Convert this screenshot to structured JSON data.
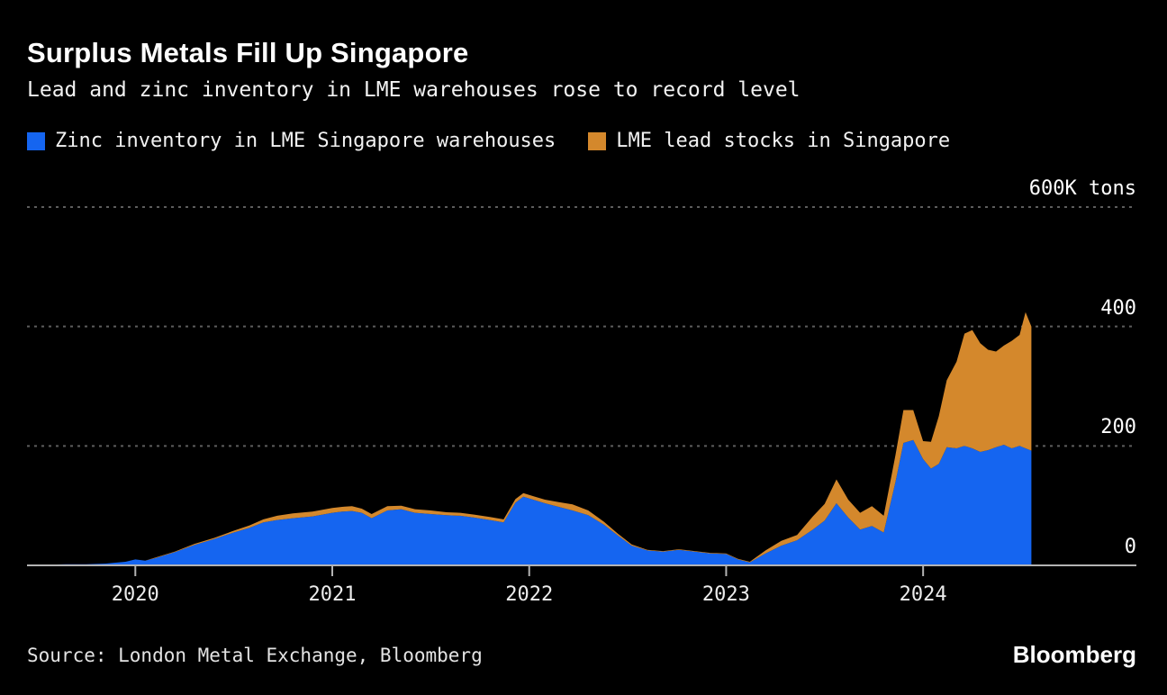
{
  "header": {
    "title": "Surplus Metals Fill Up Singapore",
    "subtitle": "Lead and zinc inventory in LME warehouses rose to record level"
  },
  "legend": [
    {
      "label": "Zinc inventory in LME Singapore warehouses",
      "color": "#1565f0"
    },
    {
      "label": "LME lead stocks in Singapore",
      "color": "#d4882c"
    }
  ],
  "chart_data": {
    "type": "area",
    "stacked": true,
    "title": "Surplus Metals Fill Up Singapore",
    "subtitle": "Lead and zinc inventory in LME warehouses rose to record level",
    "xlabel": "",
    "ylabel": "K tons",
    "xlim": [
      2019.45,
      2024.58
    ],
    "ylim": [
      0,
      600
    ],
    "x_ticks": [
      2020,
      2021,
      2022,
      2023,
      2024
    ],
    "y_ticks": [
      0,
      200,
      400,
      600
    ],
    "y_tick_labels": [
      "0",
      "200",
      "400",
      "600K tons"
    ],
    "grid": "dashed-horizontal",
    "legend_position": "top-left",
    "x": [
      2019.45,
      2019.55,
      2019.65,
      2019.75,
      2019.85,
      2019.95,
      2020.0,
      2020.05,
      2020.1,
      2020.2,
      2020.3,
      2020.4,
      2020.5,
      2020.58,
      2020.65,
      2020.72,
      2020.8,
      2020.9,
      2021.0,
      2021.05,
      2021.1,
      2021.15,
      2021.2,
      2021.28,
      2021.35,
      2021.42,
      2021.5,
      2021.58,
      2021.65,
      2021.72,
      2021.8,
      2021.87,
      2021.93,
      2021.97,
      2022.02,
      2022.08,
      2022.15,
      2022.22,
      2022.3,
      2022.38,
      2022.45,
      2022.52,
      2022.6,
      2022.68,
      2022.76,
      2022.84,
      2022.92,
      2023.0,
      2023.06,
      2023.12,
      2023.2,
      2023.28,
      2023.36,
      2023.44,
      2023.5,
      2023.56,
      2023.62,
      2023.68,
      2023.74,
      2023.8,
      2023.86,
      2023.9,
      2023.95,
      2024.0,
      2024.04,
      2024.08,
      2024.12,
      2024.17,
      2024.21,
      2024.25,
      2024.29,
      2024.33,
      2024.37,
      2024.41,
      2024.45,
      2024.49,
      2024.52,
      2024.55
    ],
    "series": [
      {
        "id": "zinc",
        "name": "Zinc inventory in LME Singapore warehouses",
        "color": "#1565f0",
        "values": [
          1,
          1,
          2,
          2,
          3,
          6,
          10,
          8,
          12,
          22,
          34,
          44,
          55,
          63,
          72,
          76,
          79,
          82,
          88,
          90,
          91,
          88,
          79,
          92,
          94,
          88,
          86,
          84,
          83,
          80,
          76,
          72,
          105,
          115,
          110,
          104,
          98,
          92,
          84,
          68,
          50,
          33,
          25,
          23,
          26,
          23,
          20,
          19,
          10,
          5,
          20,
          33,
          42,
          60,
          75,
          104,
          80,
          60,
          66,
          55,
          140,
          205,
          210,
          178,
          162,
          170,
          198,
          196,
          200,
          196,
          190,
          193,
          198,
          202,
          196,
          200,
          196,
          192
        ]
      },
      {
        "id": "lead",
        "name": "LME lead stocks in Singapore",
        "color": "#d4882c",
        "values": [
          0,
          0,
          0,
          0,
          0,
          0,
          0,
          0,
          1,
          1,
          2,
          2,
          3,
          4,
          5,
          7,
          8,
          8,
          8,
          8,
          8,
          7,
          7,
          7,
          6,
          6,
          6,
          5,
          5,
          5,
          5,
          5,
          6,
          6,
          6,
          6,
          8,
          10,
          8,
          5,
          3,
          2,
          1,
          1,
          1,
          1,
          1,
          1,
          1,
          1,
          5,
          8,
          9,
          22,
          28,
          40,
          30,
          28,
          33,
          28,
          45,
          55,
          50,
          30,
          45,
          80,
          112,
          145,
          188,
          198,
          182,
          168,
          160,
          166,
          180,
          186,
          228,
          208
        ]
      }
    ],
    "axis_color": "#b3b3b3",
    "grid_color": "#5d5d5d"
  },
  "footer": {
    "source": "Source: London Metal Exchange, Bloomberg",
    "brand": "Bloomberg"
  }
}
